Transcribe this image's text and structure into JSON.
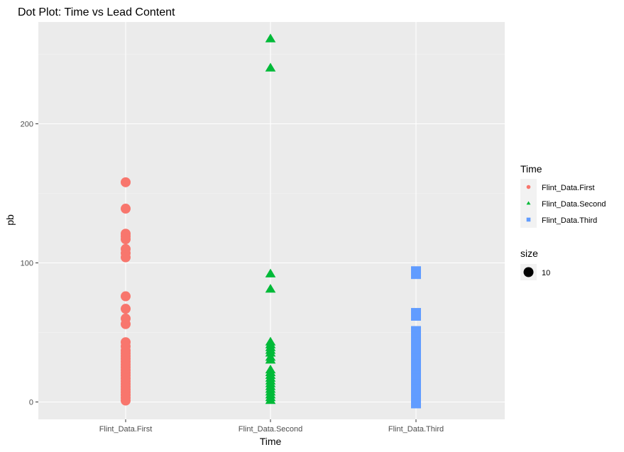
{
  "chart_data": {
    "type": "scatter",
    "title": "Dot Plot: Time vs Lead Content",
    "xlabel": "Time",
    "ylabel": "pb",
    "categories": [
      "Flint_Data.First",
      "Flint_Data.Second",
      "Flint_Data.Third"
    ],
    "yticks": [
      0,
      100,
      200
    ],
    "ylim": [
      -12,
      275
    ],
    "grid": true,
    "legend_position": "right",
    "series": [
      {
        "name": "Flint_Data.First",
        "category": "Flint_Data.First",
        "shape": "circle",
        "color": "#F8766D",
        "values": [
          158,
          139,
          121,
          119,
          117,
          110,
          107,
          104,
          76,
          67,
          60,
          56,
          43,
          40,
          37,
          35,
          33,
          31,
          29,
          27,
          25,
          23,
          21,
          19,
          17,
          15,
          13,
          11,
          9,
          7,
          5,
          3,
          1
        ]
      },
      {
        "name": "Flint_Data.Second",
        "category": "Flint_Data.Second",
        "shape": "triangle",
        "color": "#00BA38",
        "values": [
          261,
          240,
          92,
          81,
          43,
          41,
          39,
          37,
          35,
          32,
          30,
          23,
          21,
          19,
          17,
          15,
          13,
          11,
          9,
          7,
          5,
          3,
          1
        ]
      },
      {
        "name": "Flint_Data.Third",
        "category": "Flint_Data.Third",
        "shape": "square",
        "color": "#619CFF",
        "values": [
          94,
          92,
          64,
          62,
          51,
          49,
          47,
          45,
          43,
          41,
          39,
          37,
          31,
          29,
          27,
          25,
          23,
          21,
          19,
          17,
          15,
          13,
          11,
          9,
          7,
          5,
          3,
          1,
          -1
        ]
      }
    ]
  },
  "legend": {
    "time_title": "Time",
    "items": [
      {
        "label": "Flint_Data.First",
        "shape": "circle",
        "color": "#F8766D"
      },
      {
        "label": "Flint_Data.Second",
        "shape": "triangle",
        "color": "#00BA38"
      },
      {
        "label": "Flint_Data.Third",
        "shape": "square",
        "color": "#619CFF"
      }
    ],
    "size_title": "size",
    "size_label": "10"
  },
  "colors": {
    "panel_bg": "#EBEBEB",
    "grid_major": "#FFFFFF",
    "grid_minor": "#F5F5F5",
    "tick_text": "#4D4D4D"
  }
}
